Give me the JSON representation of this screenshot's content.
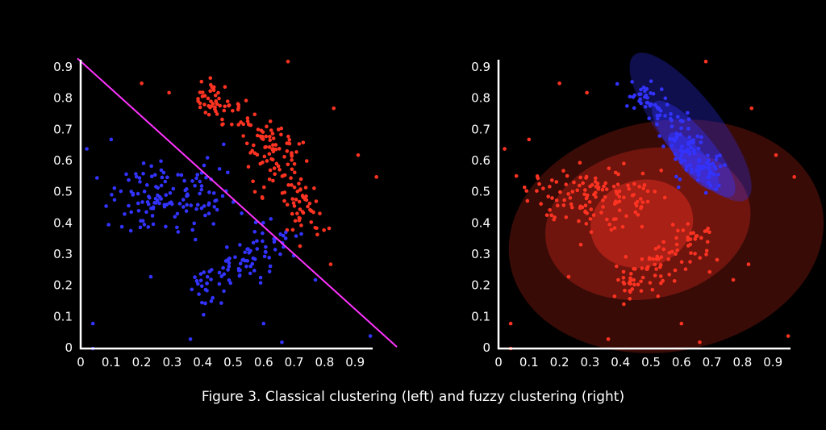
{
  "caption": "Figure 3. Classical clustering (left) and fuzzy clustering (right)",
  "colors": {
    "background": "#000000",
    "axis": "#ffffff",
    "cluster_red": "#ff3322",
    "cluster_blue": "#3333ff",
    "boundary_line": "#ff33ff"
  },
  "chart_data": [
    {
      "type": "scatter",
      "title": "",
      "xlabel": "",
      "ylabel": "",
      "xlim": [
        0,
        1.0
      ],
      "ylim": [
        0,
        0.9
      ],
      "x_ticks": [
        "0",
        "0.1",
        "0.2",
        "0.3",
        "0.4",
        "0.5",
        "0.6",
        "0.7",
        "0.8",
        "0.9"
      ],
      "y_ticks": [
        "0",
        "0.1",
        "0.2",
        "0.3",
        "0.4",
        "0.5",
        "0.6",
        "0.7",
        "0.8",
        "0.9"
      ],
      "grid": false,
      "legend": "none",
      "decision_boundary": {
        "x": [
          0,
          1.0
        ],
        "y": [
          0.93,
          0.0
        ]
      },
      "clusters": [
        {
          "color": "red",
          "segments": [
            {
              "x": [
                0.38,
                0.52
              ],
              "y": [
                0.84,
                0.74
              ],
              "n": 55,
              "spread": 0.03
            },
            {
              "x": [
                0.55,
                0.7
              ],
              "y": [
                0.72,
                0.58
              ],
              "n": 60,
              "spread": 0.035
            },
            {
              "x": [
                0.62,
                0.77
              ],
              "y": [
                0.6,
                0.4
              ],
              "n": 75,
              "spread": 0.04
            }
          ],
          "outliers": [
            [
              0.2,
              0.85
            ],
            [
              0.29,
              0.82
            ],
            [
              0.68,
              0.92
            ],
            [
              0.83,
              0.77
            ],
            [
              0.91,
              0.62
            ],
            [
              0.97,
              0.55
            ],
            [
              0.82,
              0.27
            ]
          ]
        },
        {
          "color": "blue",
          "segments": [
            {
              "x": [
                0.15,
                0.44
              ],
              "y": [
                0.49,
                0.49
              ],
              "n": 130,
              "spread": 0.055
            },
            {
              "x": [
                0.38,
                0.66
              ],
              "y": [
                0.17,
                0.36
              ],
              "n": 95,
              "spread": 0.035
            }
          ],
          "outliers": [
            [
              0.02,
              0.64
            ],
            [
              0.1,
              0.67
            ],
            [
              0.23,
              0.23
            ],
            [
              0.04,
              0.08
            ],
            [
              0.04,
              0.0
            ],
            [
              0.36,
              0.03
            ],
            [
              0.6,
              0.08
            ],
            [
              0.66,
              0.02
            ],
            [
              0.95,
              0.04
            ],
            [
              0.77,
              0.22
            ]
          ]
        }
      ]
    },
    {
      "type": "scatter",
      "title": "",
      "xlabel": "",
      "ylabel": "",
      "xlim": [
        0,
        1.0
      ],
      "ylim": [
        0,
        0.9
      ],
      "x_ticks": [
        "0",
        "0.1",
        "0.2",
        "0.3",
        "0.4",
        "0.5",
        "0.6",
        "0.7",
        "0.8",
        "0.9"
      ],
      "y_ticks": [
        "0",
        "0.1",
        "0.2",
        "0.3",
        "0.4",
        "0.5",
        "0.6",
        "0.7",
        "0.8",
        "0.9"
      ],
      "grid": false,
      "legend": "none",
      "membership_ellipses": [
        {
          "color": "red",
          "cx": 0.55,
          "cy": 0.36,
          "rx": 0.52,
          "ry": 0.37,
          "angle": -10,
          "opacity": 0.22
        },
        {
          "color": "red",
          "cx": 0.49,
          "cy": 0.4,
          "rx": 0.34,
          "ry": 0.24,
          "angle": -12,
          "opacity": 0.28
        },
        {
          "color": "red",
          "cx": 0.47,
          "cy": 0.4,
          "rx": 0.17,
          "ry": 0.14,
          "angle": -15,
          "opacity": 0.4
        },
        {
          "color": "blue",
          "cx": 0.63,
          "cy": 0.71,
          "rx": 0.3,
          "ry": 0.095,
          "angle": 52,
          "opacity": 0.3
        },
        {
          "color": "blue",
          "cx": 0.64,
          "cy": 0.64,
          "rx": 0.2,
          "ry": 0.06,
          "angle": 50,
          "opacity": 0.38
        },
        {
          "color": "blue",
          "cx": 0.64,
          "cy": 0.6,
          "rx": 0.12,
          "ry": 0.04,
          "angle": 50,
          "opacity": 0.55
        }
      ],
      "clusters": [
        {
          "color": "red",
          "segments": [
            {
              "x": [
                0.15,
                0.44
              ],
              "y": [
                0.49,
                0.49
              ],
              "n": 130,
              "spread": 0.055
            },
            {
              "x": [
                0.38,
                0.66
              ],
              "y": [
                0.17,
                0.36
              ],
              "n": 95,
              "spread": 0.035
            }
          ],
          "outliers": [
            [
              0.02,
              0.64
            ],
            [
              0.1,
              0.67
            ],
            [
              0.23,
              0.23
            ],
            [
              0.04,
              0.08
            ],
            [
              0.04,
              0.0
            ],
            [
              0.36,
              0.03
            ],
            [
              0.6,
              0.08
            ],
            [
              0.66,
              0.02
            ],
            [
              0.95,
              0.04
            ],
            [
              0.2,
              0.85
            ],
            [
              0.29,
              0.82
            ],
            [
              0.68,
              0.92
            ],
            [
              0.83,
              0.77
            ],
            [
              0.91,
              0.62
            ],
            [
              0.97,
              0.55
            ],
            [
              0.82,
              0.27
            ],
            [
              0.77,
              0.22
            ]
          ]
        },
        {
          "color": "blue",
          "segments": [
            {
              "x": [
                0.45,
                0.55
              ],
              "y": [
                0.84,
                0.74
              ],
              "n": 45,
              "spread": 0.03
            },
            {
              "x": [
                0.55,
                0.68
              ],
              "y": [
                0.72,
                0.58
              ],
              "n": 60,
              "spread": 0.035
            },
            {
              "x": [
                0.63,
                0.72
              ],
              "y": [
                0.6,
                0.52
              ],
              "n": 35,
              "spread": 0.035
            }
          ],
          "outliers": []
        }
      ]
    }
  ]
}
